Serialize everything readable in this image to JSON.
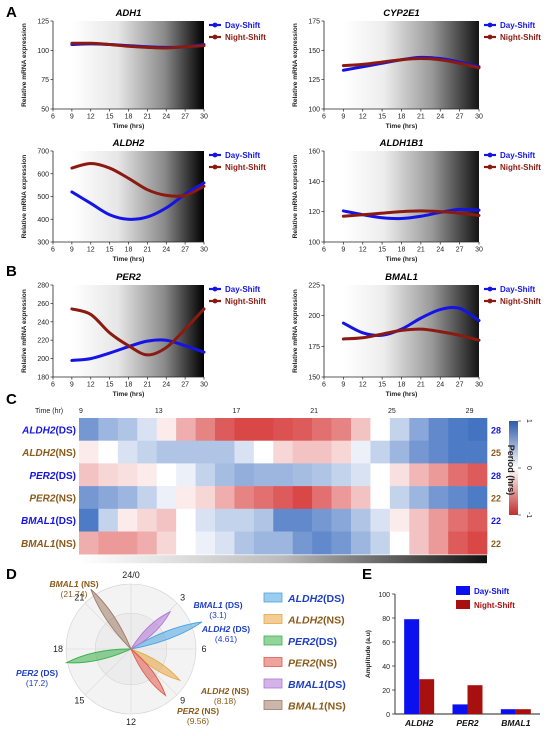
{
  "panels": {
    "a": "A",
    "b": "B",
    "c": "C",
    "d": "D",
    "e": "E"
  },
  "series_names": [
    "Day-Shift",
    "Night-Shift"
  ],
  "colors": {
    "day": "#1414e6",
    "night": "#8b1a10",
    "dayBar": "#0a10ee",
    "nightBar": "#a80f0f"
  },
  "chart_data": [
    {
      "type": "line",
      "title": "ADH1",
      "xlabel": "Time (hrs)",
      "ylabel": "Relative mRNA expression",
      "xlim": [
        6,
        30
      ],
      "ylim": [
        50,
        125
      ],
      "xticks": [
        6,
        9,
        12,
        15,
        18,
        21,
        24,
        27,
        30
      ],
      "yticks": [
        50,
        75,
        100,
        125
      ],
      "x": [
        9,
        12,
        15,
        18,
        21,
        24,
        27,
        30
      ],
      "series": [
        {
          "name": "Day-Shift",
          "values": [
            105,
            105.5,
            105,
            104,
            103,
            102.5,
            103,
            105
          ]
        },
        {
          "name": "Night-Shift",
          "values": [
            106,
            106,
            105,
            103.5,
            102.5,
            102,
            103,
            104
          ]
        }
      ]
    },
    {
      "type": "line",
      "title": "CYP2E1",
      "xlabel": "Time (hrs)",
      "ylabel": "Relative mRNA expression",
      "xlim": [
        6,
        30
      ],
      "ylim": [
        100,
        175
      ],
      "xticks": [
        6,
        9,
        12,
        15,
        18,
        21,
        24,
        27,
        30
      ],
      "yticks": [
        100,
        125,
        150,
        175
      ],
      "x": [
        9,
        12,
        15,
        18,
        21,
        24,
        27,
        30
      ],
      "series": [
        {
          "name": "Day-Shift",
          "values": [
            133,
            136,
            139,
            142,
            144,
            143,
            140,
            136
          ]
        },
        {
          "name": "Night-Shift",
          "values": [
            137,
            138,
            140,
            142,
            143,
            142,
            139,
            135
          ]
        }
      ]
    },
    {
      "type": "line",
      "title": "ALDH2",
      "xlabel": "Time (hrs)",
      "ylabel": "Relative mRNA expression",
      "xlim": [
        6,
        30
      ],
      "ylim": [
        300,
        700
      ],
      "xticks": [
        6,
        9,
        12,
        15,
        18,
        21,
        24,
        27,
        30
      ],
      "yticks": [
        300,
        400,
        500,
        600,
        700
      ],
      "x": [
        9,
        12,
        15,
        18,
        21,
        24,
        27,
        30
      ],
      "series": [
        {
          "name": "Day-Shift",
          "values": [
            520,
            470,
            420,
            400,
            410,
            450,
            510,
            560
          ]
        },
        {
          "name": "Night-Shift",
          "values": [
            625,
            645,
            625,
            580,
            530,
            505,
            505,
            545
          ]
        }
      ]
    },
    {
      "type": "line",
      "title": "ALDH1B1",
      "xlabel": "Time (hrs)",
      "ylabel": "Relative mRNA expression",
      "xlim": [
        6,
        30
      ],
      "ylim": [
        100,
        160
      ],
      "xticks": [
        6,
        9,
        12,
        15,
        18,
        21,
        24,
        27,
        30
      ],
      "yticks": [
        100,
        120,
        140,
        160
      ],
      "x": [
        9,
        12,
        15,
        18,
        21,
        24,
        27,
        30
      ],
      "series": [
        {
          "name": "Day-Shift",
          "values": [
            120.5,
            118,
            116,
            115.5,
            117,
            119.5,
            121.5,
            121
          ]
        },
        {
          "name": "Night-Shift",
          "values": [
            117,
            118,
            119,
            120,
            120.5,
            120,
            119,
            117.5
          ]
        }
      ]
    },
    {
      "type": "line",
      "title": "PER2",
      "xlabel": "Time (hrs)",
      "ylabel": "Relative mRNA expression",
      "xlim": [
        6,
        30
      ],
      "ylim": [
        180,
        280
      ],
      "xticks": [
        6,
        9,
        12,
        15,
        18,
        21,
        24,
        27,
        30
      ],
      "yticks": [
        180,
        200,
        220,
        240,
        260,
        280
      ],
      "x": [
        9,
        12,
        15,
        18,
        21,
        24,
        27,
        30
      ],
      "series": [
        {
          "name": "Day-Shift",
          "values": [
            198,
            200,
            206,
            213,
            219,
            220,
            214,
            207
          ]
        },
        {
          "name": "Night-Shift",
          "values": [
            254,
            248,
            228,
            214,
            204,
            212,
            232,
            254
          ]
        }
      ]
    },
    {
      "type": "line",
      "title": "BMAL1",
      "xlabel": "Time (hrs)",
      "ylabel": "Relative mRNA expression",
      "xlim": [
        6,
        30
      ],
      "ylim": [
        150,
        225
      ],
      "xticks": [
        6,
        9,
        12,
        15,
        18,
        21,
        24,
        27,
        30
      ],
      "yticks": [
        150,
        175,
        200,
        225
      ],
      "x": [
        9,
        12,
        15,
        18,
        21,
        24,
        27,
        30
      ],
      "series": [
        {
          "name": "Day-Shift",
          "values": [
            194,
            186,
            184,
            189,
            198,
            205,
            206,
            196
          ]
        },
        {
          "name": "Night-Shift",
          "values": [
            181,
            182,
            185,
            188,
            189,
            187,
            184,
            180
          ]
        }
      ]
    },
    {
      "type": "heatmap",
      "xlabel_prefix": "Time (hr)",
      "xticks": [
        9,
        13,
        17,
        21,
        25,
        29
      ],
      "rows": [
        "ALDH2(DS)",
        "ALDH2(NS)",
        "PER2(DS)",
        "PER2(NS)",
        "BMAL1(DS)",
        "BMAL1(NS)"
      ],
      "periods": [
        "28",
        "25",
        "28",
        "22",
        "22",
        "22"
      ],
      "period_label": "Period (hrs)",
      "colorbar": [
        "1",
        "0",
        "-1"
      ],
      "value_range": [
        -1,
        1
      ],
      "values": [
        [
          0.7,
          0.5,
          0.4,
          0.2,
          -0.1,
          -0.4,
          -0.6,
          -0.8,
          -0.9,
          -0.9,
          -0.85,
          -0.8,
          -0.7,
          -0.6,
          -0.3,
          0.0,
          0.3,
          0.6,
          0.8,
          0.9,
          0.95
        ],
        [
          -0.1,
          0.0,
          0.2,
          0.3,
          0.4,
          0.4,
          0.4,
          0.4,
          0.2,
          0.0,
          -0.2,
          -0.3,
          -0.3,
          -0.2,
          0.1,
          0.3,
          0.5,
          0.7,
          0.8,
          0.9,
          0.9
        ],
        [
          -0.3,
          -0.2,
          -0.15,
          -0.1,
          0.0,
          0.1,
          0.3,
          0.45,
          0.55,
          0.5,
          0.5,
          0.45,
          0.4,
          0.3,
          0.2,
          0.0,
          -0.15,
          -0.35,
          -0.5,
          -0.7,
          -0.8
        ],
        [
          0.7,
          0.6,
          0.5,
          0.3,
          0.1,
          -0.1,
          -0.2,
          -0.4,
          -0.6,
          -0.7,
          -0.8,
          -0.9,
          -0.7,
          -0.5,
          -0.3,
          0.0,
          0.3,
          0.5,
          0.7,
          0.8,
          0.9
        ],
        [
          0.9,
          0.3,
          -0.1,
          -0.2,
          -0.3,
          0.0,
          0.2,
          0.3,
          0.3,
          0.4,
          0.8,
          0.8,
          0.7,
          0.6,
          0.4,
          0.2,
          -0.1,
          -0.3,
          -0.5,
          -0.7,
          -0.8
        ],
        [
          -0.4,
          -0.5,
          -0.5,
          -0.4,
          -0.2,
          0.0,
          0.1,
          0.2,
          0.4,
          0.5,
          0.5,
          0.7,
          0.8,
          0.7,
          0.5,
          0.3,
          0.0,
          -0.3,
          -0.5,
          -0.8,
          -0.9
        ]
      ]
    },
    {
      "type": "polar",
      "ticks": [
        "24/0",
        "3",
        "6",
        "9",
        "12",
        "15",
        "18",
        "21"
      ],
      "peaks": [
        {
          "name": "ALDH2(DS)",
          "value": "(4.61)",
          "hour": 4.61
        },
        {
          "name": "ALDH2(NS)",
          "value": "(8.18)",
          "hour": 8.18
        },
        {
          "name": "PER2(DS)",
          "value": "(17.2)",
          "hour": 17.2
        },
        {
          "name": "PER2(NS)",
          "value": "(9.56)",
          "hour": 9.56
        },
        {
          "name": "BMAL1(DS)",
          "value": "(3.1)",
          "hour": 3.1
        },
        {
          "name": "BMAL1(NS)",
          "value": "(21.74)",
          "hour": 21.74
        }
      ],
      "legend": [
        "ALDH2(DS)",
        "ALDH2(NS)",
        "PER2(DS)",
        "PER2(NS)",
        "BMAL1(DS)",
        "BMAL1(NS)"
      ],
      "legend_colors": [
        "#4aa3e0",
        "#e8a640",
        "#3bb04a",
        "#e05a4a",
        "#b077d6",
        "#a07a66"
      ]
    },
    {
      "type": "bar",
      "categories": [
        "ALDH2",
        "PER2",
        "BMAL1"
      ],
      "ylabel": "Amplitude (a.u)",
      "ylim": [
        0,
        100
      ],
      "yticks": [
        0,
        20,
        40,
        60,
        80,
        100
      ],
      "series": [
        {
          "name": "Day-Shift",
          "values": [
            79,
            8,
            4
          ]
        },
        {
          "name": "Night-Shift",
          "values": [
            29,
            24,
            4
          ]
        }
      ]
    }
  ]
}
